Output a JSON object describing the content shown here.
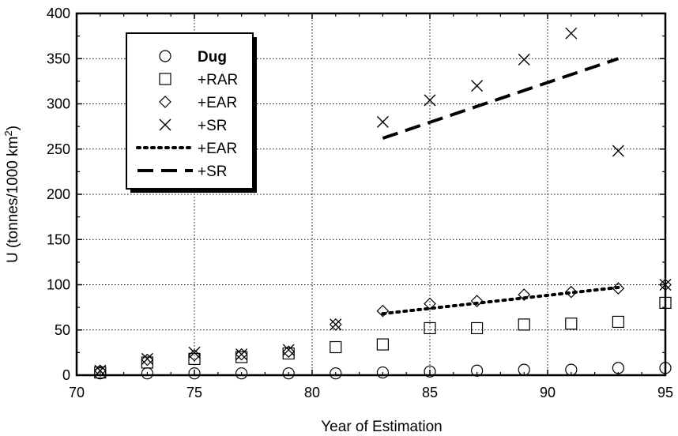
{
  "chart_data": {
    "type": "scatter",
    "title": "",
    "xlabel": "Year of Estimation",
    "ylabel_main": "U (tonnes/1000 km",
    "ylabel_sup": "2",
    "ylabel_close": ")",
    "xlim": [
      70,
      95
    ],
    "ylim": [
      0,
      400
    ],
    "xticks": [
      70,
      75,
      80,
      85,
      90,
      95
    ],
    "yticks": [
      0,
      50,
      100,
      150,
      200,
      250,
      300,
      350,
      400
    ],
    "grid": "dotted",
    "legend_position": "top-left",
    "series": [
      {
        "name": "Dug",
        "marker": "circle",
        "points": [
          [
            71,
            2
          ],
          [
            73,
            2
          ],
          [
            75,
            2
          ],
          [
            77,
            2
          ],
          [
            79,
            2
          ],
          [
            81,
            2
          ],
          [
            83,
            3
          ],
          [
            85,
            4
          ],
          [
            87,
            5
          ],
          [
            89,
            6
          ],
          [
            91,
            6
          ],
          [
            93,
            8
          ],
          [
            95,
            8
          ]
        ]
      },
      {
        "name": "+RAR",
        "marker": "square",
        "points": [
          [
            71,
            3
          ],
          [
            73,
            14
          ],
          [
            75,
            18
          ],
          [
            77,
            20
          ],
          [
            79,
            24
          ],
          [
            81,
            31
          ],
          [
            83,
            34
          ],
          [
            85,
            52
          ],
          [
            87,
            52
          ],
          [
            89,
            56
          ],
          [
            91,
            57
          ],
          [
            93,
            59
          ],
          [
            95,
            80
          ]
        ]
      },
      {
        "name": "+EAR",
        "marker": "diamond",
        "points": [
          [
            71,
            5
          ],
          [
            73,
            17
          ],
          [
            75,
            22
          ],
          [
            77,
            23
          ],
          [
            79,
            26
          ],
          [
            81,
            56
          ],
          [
            83,
            71
          ],
          [
            85,
            79
          ],
          [
            87,
            82
          ],
          [
            89,
            89
          ],
          [
            91,
            92
          ],
          [
            93,
            96
          ],
          [
            95,
            100
          ]
        ]
      },
      {
        "name": "+SR",
        "marker": "x",
        "points": [
          [
            71,
            5
          ],
          [
            73,
            18
          ],
          [
            75,
            25
          ],
          [
            77,
            23
          ],
          [
            79,
            28
          ],
          [
            81,
            56
          ],
          [
            83,
            280
          ],
          [
            85,
            304
          ],
          [
            87,
            320
          ],
          [
            89,
            349
          ],
          [
            91,
            378
          ],
          [
            93,
            248
          ],
          [
            95,
            100
          ]
        ]
      },
      {
        "name": "+EAR",
        "line": "dotted",
        "points": [
          [
            83,
            68
          ],
          [
            93,
            97
          ]
        ]
      },
      {
        "name": "+SR",
        "line": "dashed",
        "points": [
          [
            83,
            262
          ],
          [
            93,
            350
          ]
        ]
      }
    ]
  }
}
